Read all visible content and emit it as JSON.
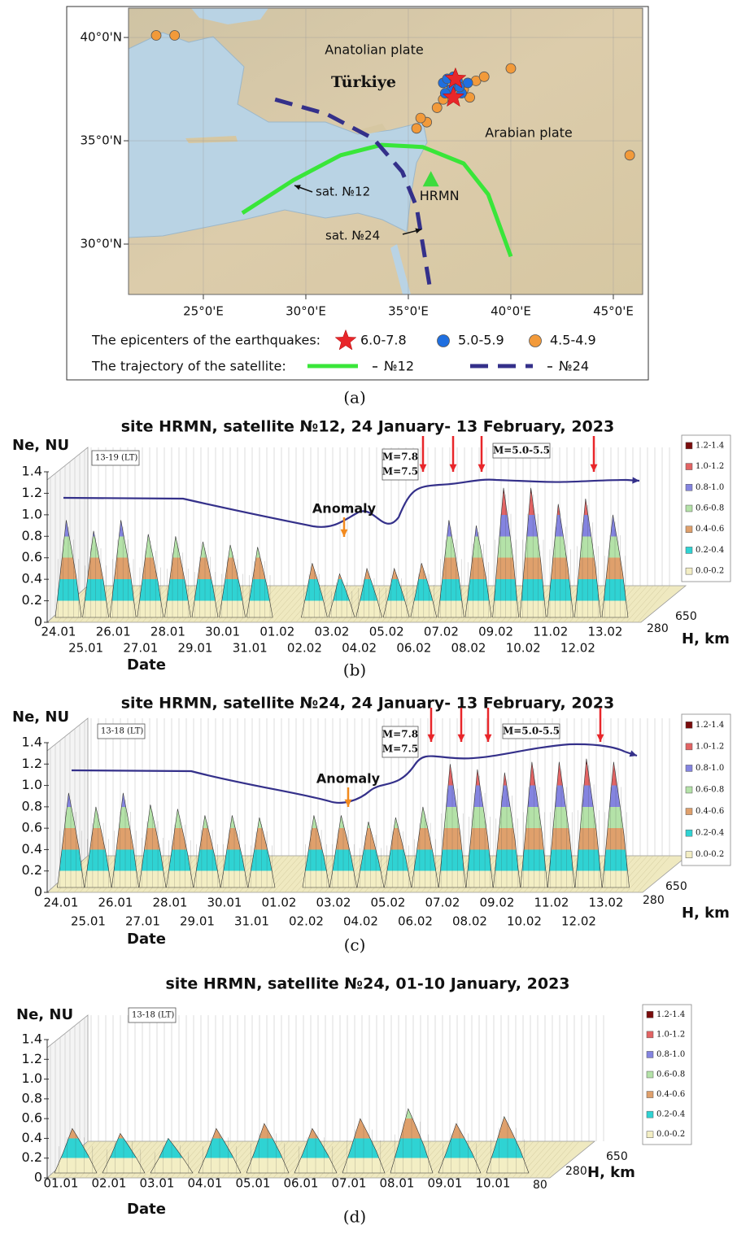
{
  "map": {
    "caption": "(a)",
    "lon_range": [
      21.35,
      46.43
    ],
    "lat_range": [
      27.56,
      41.42
    ],
    "lat_ticks": [
      {
        "value": 40,
        "label": "40°0'N"
      },
      {
        "value": 35,
        "label": "35°0'N"
      },
      {
        "value": 30,
        "label": "30°0'N"
      }
    ],
    "lon_ticks": [
      {
        "value": 25,
        "label": "25°0'E"
      },
      {
        "value": 30,
        "label": "30°0'E"
      },
      {
        "value": 35,
        "label": "35°0'E"
      },
      {
        "value": 40,
        "label": "40°0'E"
      },
      {
        "value": 45,
        "label": "45°0'E"
      }
    ],
    "labels": {
      "anatolian": "Anatolian plate",
      "turkiye": "Türkiye",
      "arabian": "Arabian plate",
      "sat12": "sat. №12",
      "sat24": "sat. №24"
    },
    "station": {
      "name": "HRMN",
      "lon": 36.1,
      "lat": 33.1,
      "color": "#3ddc3d"
    },
    "epicenters_title": "The epicenters of the earthquakes:",
    "epicenters": [
      {
        "label": "6.0-7.8",
        "color": "#e8262a",
        "shape": "star",
        "lon": [
          37.3,
          37.2
        ],
        "lat": [
          38.0,
          37.1
        ]
      },
      {
        "label": "5.0-5.9",
        "color": "#1f6fe0",
        "shape": "circle",
        "lon": [
          36.7,
          36.9,
          37.1,
          37.4,
          37.6,
          37.9,
          36.8,
          37.2,
          37.5
        ],
        "lat": [
          37.8,
          38.0,
          37.5,
          37.9,
          37.3,
          37.8,
          37.3,
          38.1,
          37.6
        ]
      },
      {
        "label": "4.5-4.9",
        "color": "#f29a3a",
        "shape": "circle",
        "lon": [
          22.7,
          23.6,
          40.0,
          45.8,
          35.4,
          35.9,
          36.4,
          36.7,
          38.3,
          38.7,
          37.7,
          38.0,
          35.6
        ],
        "lat": [
          40.1,
          40.1,
          38.5,
          34.3,
          35.6,
          35.9,
          36.6,
          37.0,
          37.9,
          38.1,
          37.5,
          37.1,
          36.1
        ]
      }
    ],
    "trajectory_title": "The trajectory of the satellite:",
    "trajectories": [
      {
        "name": "№12",
        "color": "#39e639",
        "dashed": false,
        "lon": [
          26.9,
          29.4,
          31.7,
          33.7,
          35.7,
          37.7,
          38.9,
          40.0
        ],
        "lat": [
          31.5,
          33.1,
          34.3,
          34.8,
          34.7,
          33.9,
          32.4,
          29.4
        ]
      },
      {
        "name": "№24",
        "color": "#34308a",
        "dashed": true,
        "lon": [
          28.5,
          31.0,
          33.3,
          34.7,
          35.4,
          35.7,
          36.1
        ],
        "lat": [
          37.0,
          36.3,
          35.1,
          33.5,
          31.8,
          30.0,
          27.6
        ]
      }
    ]
  },
  "charts": [
    {
      "type": "surface",
      "caption": "(b)",
      "title": "site HRMN, satellite №12, 24 January- 13 February, 2023",
      "y_label": "Ne, NU",
      "x_label": "Date",
      "z_label": "H, km",
      "z_ticks": [
        280,
        650
      ],
      "time_window": "13-19 (LT)",
      "ylim": [
        0,
        1.4
      ],
      "yticks": [
        0,
        0.2,
        0.4,
        0.6,
        0.8,
        {
          "value": 1,
          "label": "1.0"
        },
        1.2,
        1.4
      ],
      "levels": [
        {
          "label": "0.0-0.2",
          "color": "#f3eec4"
        },
        {
          "label": "0.2-0.4",
          "color": "#2fd3d3"
        },
        {
          "label": "0.4-0.6",
          "color": "#dfa06c"
        },
        {
          "label": "0.6-0.8",
          "color": "#b4e2a8"
        },
        {
          "label": "0.8-1.0",
          "color": "#8484e0"
        },
        {
          "label": "1.0-1.2",
          "color": "#e26464"
        },
        {
          "label": "1.2-1.4",
          "color": "#7a0c0c"
        }
      ],
      "categories": [
        "24.01",
        "25.01",
        "26.01",
        "27.01",
        "28.01",
        "29.01",
        "30.01",
        "31.01",
        "01.02",
        "02.02",
        "03.02",
        "04.02",
        "05.02",
        "06.02",
        "07.02",
        "08.02",
        "09.02",
        "10.02",
        "11.02",
        "12.02",
        "13.02"
      ],
      "values": [
        0.95,
        0.85,
        0.95,
        0.82,
        0.8,
        0.75,
        0.72,
        0.7,
        null,
        0.55,
        0.45,
        0.5,
        0.5,
        0.55,
        0.95,
        0.9,
        1.25,
        1.25,
        1.1,
        1.15,
        1.0
      ],
      "annotations": {
        "anomaly": "Anomaly",
        "major": [
          "M=7.8",
          "M=7.5"
        ],
        "minor": "M=5.0-5.5"
      }
    },
    {
      "type": "surface",
      "caption": "(c)",
      "title": "site HRMN, satellite №24, 24 January- 13 February, 2023",
      "y_label": "Ne, NU",
      "x_label": "Date",
      "z_label": "H, km",
      "z_ticks": [
        280,
        650
      ],
      "time_window": "13-18 (LT)",
      "ylim": [
        0,
        1.4
      ],
      "yticks": [
        0,
        0.2,
        0.4,
        0.6,
        0.8,
        {
          "value": 1,
          "label": "1.0"
        },
        1.2,
        1.4
      ],
      "levels": [
        {
          "label": "0.0-0.2",
          "color": "#f3eec4"
        },
        {
          "label": "0.2-0.4",
          "color": "#2fd3d3"
        },
        {
          "label": "0.4-0.6",
          "color": "#dfa06c"
        },
        {
          "label": "0.6-0.8",
          "color": "#b4e2a8"
        },
        {
          "label": "0.8-1.0",
          "color": "#8484e0"
        },
        {
          "label": "1.0-1.2",
          "color": "#e26464"
        },
        {
          "label": "1.2-1.4",
          "color": "#7a0c0c"
        }
      ],
      "categories": [
        "24.01",
        "25.01",
        "26.01",
        "27.01",
        "28.01",
        "29.01",
        "30.01",
        "31.01",
        "01.02",
        "02.02",
        "03.02",
        "04.02",
        "05.02",
        "06.02",
        "07.02",
        "08.02",
        "09.02",
        "10.02",
        "11.02",
        "12.02",
        "13.02"
      ],
      "values": [
        0.93,
        0.8,
        0.93,
        0.82,
        0.78,
        0.72,
        0.72,
        0.7,
        null,
        0.72,
        0.72,
        0.66,
        0.7,
        0.8,
        1.2,
        1.15,
        1.12,
        1.22,
        1.22,
        1.25,
        1.22
      ],
      "annotations": {
        "anomaly": "Anomaly",
        "major": [
          "M=7.8",
          "M=7.5"
        ],
        "minor": "M=5.0-5.5"
      }
    },
    {
      "type": "surface",
      "caption": "(d)",
      "title": "site HRMN, satellite №24, 01-10 January, 2023",
      "y_label": "Ne, NU",
      "x_label": "Date",
      "z_label": "H, km",
      "z_ticks": [
        80,
        280,
        650
      ],
      "time_window": "13-18 (LT)",
      "ylim": [
        0,
        1.4
      ],
      "yticks": [
        0,
        0.2,
        0.4,
        0.6,
        0.8,
        {
          "value": 1,
          "label": "1.0"
        },
        1.2,
        1.4
      ],
      "levels": [
        {
          "label": "0.0-0.2",
          "color": "#f3eec4"
        },
        {
          "label": "0.2-0.4",
          "color": "#2fd3d3"
        },
        {
          "label": "0.4-0.6",
          "color": "#dfa06c"
        },
        {
          "label": "0.6-0.8",
          "color": "#b4e2a8"
        },
        {
          "label": "0.8-1.0",
          "color": "#8484e0"
        },
        {
          "label": "1.0-1.2",
          "color": "#e26464"
        },
        {
          "label": "1.2-1.4",
          "color": "#7a0c0c"
        }
      ],
      "categories": [
        "01.01",
        "02.01",
        "03.01",
        "04.01",
        "05.01",
        "06.01",
        "07.01",
        "08.01",
        "09.01",
        "10.01"
      ],
      "values": [
        0.5,
        0.45,
        0.4,
        0.5,
        0.55,
        0.5,
        0.6,
        0.7,
        0.55,
        0.62
      ]
    }
  ]
}
